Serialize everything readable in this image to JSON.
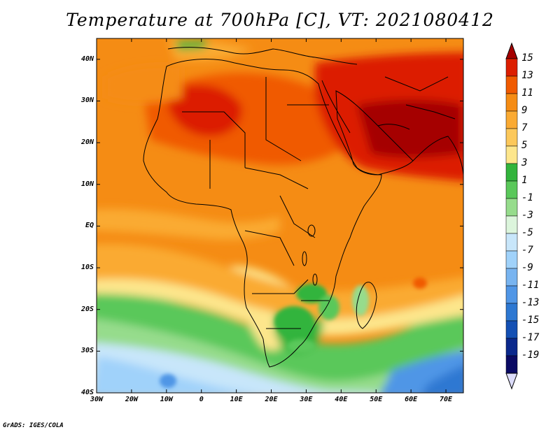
{
  "title": "Temperature at 700hPa [C], VT: 2021080412",
  "credit": "GrADS: IGES/COLA",
  "map": {
    "lon_ticks": [
      "30W",
      "20W",
      "10W",
      "0",
      "10E",
      "20E",
      "30E",
      "40E",
      "50E",
      "60E",
      "70E"
    ],
    "lat_ticks": [
      "40N",
      "30N",
      "20N",
      "10N",
      "EQ",
      "10S",
      "20S",
      "30S",
      "40S"
    ],
    "lon_range": [
      -30,
      75
    ],
    "lat_range": [
      -40,
      45
    ]
  },
  "colorbar": {
    "labels": [
      "15",
      "13",
      "11",
      "9",
      "7",
      "5",
      "3",
      "1",
      "-1",
      "-3",
      "-5",
      "-7",
      "-9",
      "-11",
      "-13",
      "-15",
      "-17",
      "-19"
    ],
    "colors": [
      "#a50000",
      "#dc1e00",
      "#f05a00",
      "#f58c14",
      "#faaa32",
      "#fcc85a",
      "#fde68c",
      "#32b43c",
      "#5ac85a",
      "#96dc8c",
      "#dcf5dc",
      "#c8e6fa",
      "#a0d2fa",
      "#78b4f0",
      "#5096e6",
      "#2d78d2",
      "#1450b4",
      "#0a288c",
      "#0a0a64",
      "#dcdcfa"
    ]
  },
  "colors": {
    "land_outline": "#000000",
    "background": "#ffffff"
  }
}
